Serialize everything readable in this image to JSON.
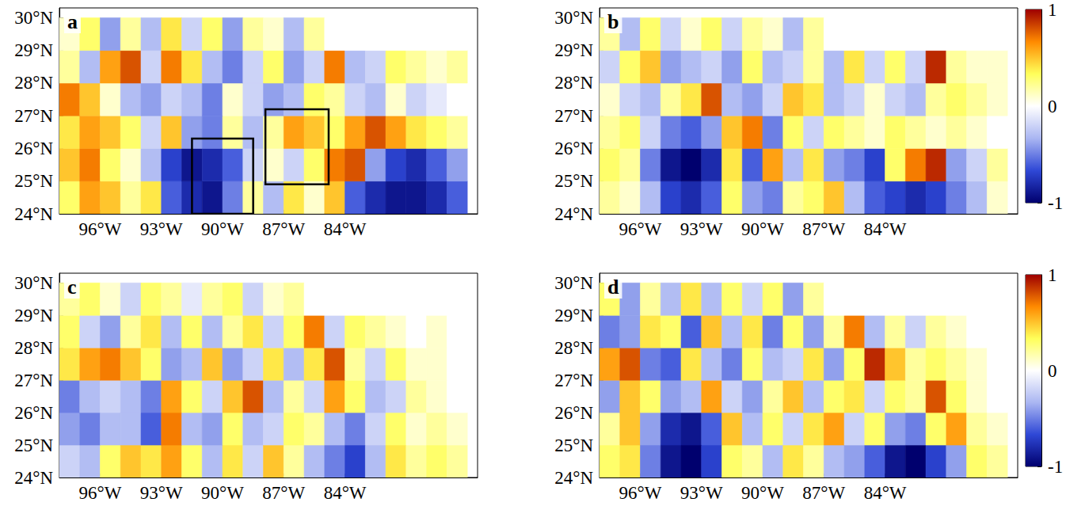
{
  "chart_data": [
    {
      "type": "heatmap",
      "title": "a",
      "grid": false,
      "x": [
        -97.5,
        -96.5,
        -95.5,
        -94.5,
        -93.5,
        -92.5,
        -91.5,
        -90.5,
        -89.5,
        -88.5,
        -87.5,
        -86.5,
        -85.5,
        -84.5,
        -83.5,
        -82.5,
        -81.5,
        -80.5,
        -79.5,
        -78.5
      ],
      "y": [
        24.5,
        25.5,
        26.5,
        27.5,
        28.5,
        29.5
      ],
      "values": [
        [
          0.3,
          0.6,
          0.5,
          0.2,
          0.4,
          -0.6,
          -0.8,
          -0.9,
          -0.5,
          0.2,
          -0.3,
          0.4,
          0.1,
          0.5,
          -0.6,
          -0.8,
          -0.9,
          -0.9,
          -0.8,
          -0.6
        ],
        [
          0.5,
          0.7,
          0.3,
          0.1,
          -0.3,
          -0.7,
          -0.9,
          -0.8,
          -0.6,
          -0.2,
          0.1,
          -0.2,
          0.3,
          0.7,
          0.8,
          -0.4,
          -0.7,
          -0.8,
          -0.6,
          -0.4
        ],
        [
          0.4,
          0.6,
          0.5,
          0.3,
          -0.2,
          0.5,
          -0.4,
          -0.5,
          0.2,
          -0.3,
          0.2,
          0.6,
          0.5,
          0.3,
          0.6,
          0.8,
          0.6,
          0.4,
          0.3,
          0.2
        ],
        [
          0.7,
          0.5,
          0.1,
          -0.3,
          -0.4,
          -0.2,
          -0.3,
          -0.5,
          0.1,
          -0.2,
          -0.4,
          -0.3,
          0.3,
          0.2,
          -0.2,
          -0.3,
          0.1,
          -0.2,
          -0.1,
          0.0
        ],
        [
          0.2,
          -0.3,
          0.6,
          0.8,
          -0.2,
          0.7,
          0.4,
          -0.3,
          -0.5,
          -0.2,
          0.3,
          -0.4,
          -0.2,
          0.7,
          -0.3,
          -0.2,
          0.3,
          0.2,
          0.1,
          0.2
        ],
        [
          0.1,
          0.3,
          -0.4,
          0.2,
          -0.3,
          0.4,
          -0.2,
          0.3,
          -0.4,
          0.2,
          0.1,
          -0.3,
          0.2,
          0.0,
          0.0,
          0.0,
          0.0,
          0.0,
          0.0,
          0.0
        ]
      ],
      "xlim": [
        -98,
        -77.5
      ],
      "xticks": [
        {
          "value": -96,
          "label": "96°W"
        },
        {
          "value": -93,
          "label": "93°W"
        },
        {
          "value": -90,
          "label": "90°W"
        },
        {
          "value": -87,
          "label": "87°W"
        },
        {
          "value": -84,
          "label": "84°W"
        }
      ],
      "ylim": [
        24,
        30.3
      ],
      "yticks": [
        {
          "value": 24,
          "label": "24°N"
        },
        {
          "value": 25,
          "label": "25°N"
        },
        {
          "value": 26,
          "label": "26°N"
        },
        {
          "value": 27,
          "label": "27°N"
        },
        {
          "value": 28,
          "label": "28°N"
        },
        {
          "value": 29,
          "label": "29°N"
        },
        {
          "value": 30,
          "label": "30°N"
        }
      ],
      "boxes": [
        {
          "lon": [
            -91.5,
            -88.5
          ],
          "lat": [
            24,
            26.3
          ]
        },
        {
          "lon": [
            -87.9,
            -84.8
          ],
          "lat": [
            24.9,
            27.2
          ]
        }
      ]
    },
    {
      "type": "heatmap",
      "title": "b",
      "grid": false,
      "x": [
        -97.5,
        -96.5,
        -95.5,
        -94.5,
        -93.5,
        -92.5,
        -91.5,
        -90.5,
        -89.5,
        -88.5,
        -87.5,
        -86.5,
        -85.5,
        -84.5,
        -83.5,
        -82.5,
        -81.5,
        -80.5,
        -79.5,
        -78.5
      ],
      "y": [
        24.5,
        25.5,
        26.5,
        27.5,
        28.5,
        29.5
      ],
      "values": [
        [
          0.2,
          0.1,
          -0.3,
          -0.7,
          -0.8,
          -0.6,
          0.3,
          -0.4,
          -0.5,
          0.2,
          0.3,
          0.5,
          -0.3,
          -0.6,
          -0.7,
          -0.8,
          -0.7,
          -0.5,
          -0.3,
          0.1
        ],
        [
          0.3,
          0.2,
          -0.5,
          -0.9,
          -1.0,
          -0.8,
          0.4,
          -0.6,
          0.6,
          -0.3,
          0.4,
          -0.4,
          -0.5,
          -0.7,
          0.3,
          0.7,
          0.9,
          -0.4,
          -0.2,
          0.2
        ],
        [
          0.2,
          0.3,
          -0.2,
          -0.5,
          -0.6,
          -0.4,
          0.5,
          0.7,
          -0.5,
          0.3,
          -0.2,
          0.3,
          0.2,
          0.1,
          0.3,
          0.2,
          0.1,
          0.2,
          0.1,
          0.0
        ],
        [
          0.1,
          -0.2,
          -0.3,
          0.2,
          0.4,
          0.8,
          -0.3,
          -0.4,
          -0.2,
          0.5,
          0.4,
          -0.3,
          -0.2,
          0.1,
          -0.2,
          -0.3,
          0.2,
          0.3,
          0.2,
          0.1
        ],
        [
          -0.2,
          0.3,
          0.5,
          -0.4,
          -0.3,
          -0.2,
          -0.4,
          0.3,
          -0.3,
          -0.2,
          0.2,
          -0.3,
          0.4,
          -0.2,
          0.3,
          -0.2,
          0.9,
          0.2,
          0.1,
          0.1
        ],
        [
          0.2,
          -0.3,
          0.3,
          -0.2,
          0.1,
          0.3,
          -0.2,
          0.2,
          0.1,
          -0.3,
          0.2,
          0.0,
          0.0,
          0.0,
          0.0,
          0.0,
          0.0,
          0.0,
          0.0,
          0.0
        ]
      ],
      "xlim": [
        -98,
        -77.5
      ],
      "xticks": [
        {
          "value": -96,
          "label": "96°W"
        },
        {
          "value": -93,
          "label": "93°W"
        },
        {
          "value": -90,
          "label": "90°W"
        },
        {
          "value": -87,
          "label": "87°W"
        },
        {
          "value": -84,
          "label": "84°W"
        }
      ],
      "ylim": [
        24,
        30.3
      ],
      "yticks": [
        {
          "value": 24,
          "label": "24°N"
        },
        {
          "value": 25,
          "label": "25°N"
        },
        {
          "value": 26,
          "label": "26°N"
        },
        {
          "value": 27,
          "label": "27°N"
        },
        {
          "value": 28,
          "label": "28°N"
        },
        {
          "value": 29,
          "label": "29°N"
        },
        {
          "value": 30,
          "label": "30°N"
        }
      ],
      "colorbar": {
        "range": [
          -1,
          1
        ],
        "ticks": [
          -1,
          0,
          1
        ]
      }
    },
    {
      "type": "heatmap",
      "title": "c",
      "grid": false,
      "x": [
        -97.5,
        -96.5,
        -95.5,
        -94.5,
        -93.5,
        -92.5,
        -91.5,
        -90.5,
        -89.5,
        -88.5,
        -87.5,
        -86.5,
        -85.5,
        -84.5,
        -83.5,
        -82.5,
        -81.5,
        -80.5,
        -79.5,
        -78.5
      ],
      "y": [
        24.5,
        25.5,
        26.5,
        27.5,
        28.5,
        29.5
      ],
      "values": [
        [
          -0.2,
          -0.3,
          0.3,
          0.5,
          0.4,
          0.6,
          0.3,
          -0.3,
          0.4,
          -0.2,
          0.5,
          0.2,
          -0.3,
          -0.5,
          -0.7,
          -0.3,
          0.4,
          0.2,
          0.3,
          0.2
        ],
        [
          -0.4,
          -0.5,
          -0.3,
          -0.3,
          -0.6,
          0.7,
          -0.3,
          -0.4,
          0.3,
          -0.3,
          -0.2,
          0.3,
          0.2,
          -0.3,
          -0.5,
          -0.2,
          0.3,
          0.1,
          0.2,
          0.1
        ],
        [
          -0.5,
          -0.3,
          -0.2,
          -0.3,
          -0.5,
          0.6,
          0.3,
          -0.2,
          0.5,
          0.8,
          -0.3,
          0.2,
          -0.2,
          0.6,
          0.3,
          -0.3,
          -0.2,
          0.2,
          0.1,
          0.0
        ],
        [
          0.4,
          0.6,
          0.7,
          0.5,
          0.3,
          -0.4,
          -0.3,
          0.5,
          -0.4,
          -0.2,
          0.4,
          -0.3,
          0.4,
          0.8,
          0.2,
          -0.2,
          0.3,
          0.1,
          0.1,
          0.0
        ],
        [
          0.3,
          -0.2,
          -0.4,
          0.2,
          0.4,
          -0.3,
          0.3,
          -0.3,
          0.2,
          0.4,
          -0.2,
          0.3,
          0.7,
          -0.2,
          0.3,
          0.2,
          0.1,
          0.0,
          0.1,
          0.0
        ],
        [
          0.2,
          0.3,
          0.1,
          -0.2,
          0.3,
          0.2,
          -0.1,
          0.2,
          0.3,
          -0.2,
          0.1,
          0.2,
          0.0,
          0.0,
          0.0,
          0.0,
          0.0,
          0.0,
          0.0,
          0.0
        ]
      ],
      "xlim": [
        -98,
        -77.5
      ],
      "xticks": [
        {
          "value": -96,
          "label": "96°W"
        },
        {
          "value": -93,
          "label": "93°W"
        },
        {
          "value": -90,
          "label": "90°W"
        },
        {
          "value": -87,
          "label": "87°W"
        },
        {
          "value": -84,
          "label": "84°W"
        }
      ],
      "ylim": [
        24,
        30.3
      ],
      "yticks": [
        {
          "value": 24,
          "label": "24°N"
        },
        {
          "value": 25,
          "label": "25°N"
        },
        {
          "value": 26,
          "label": "26°N"
        },
        {
          "value": 27,
          "label": "27°N"
        },
        {
          "value": 28,
          "label": "28°N"
        },
        {
          "value": 29,
          "label": "29°N"
        },
        {
          "value": 30,
          "label": "30°N"
        }
      ]
    },
    {
      "type": "heatmap",
      "title": "d",
      "grid": false,
      "x": [
        -97.5,
        -96.5,
        -95.5,
        -94.5,
        -93.5,
        -92.5,
        -91.5,
        -90.5,
        -89.5,
        -88.5,
        -87.5,
        -86.5,
        -85.5,
        -84.5,
        -83.5,
        -82.5,
        -81.5,
        -80.5,
        -79.5,
        -78.5
      ],
      "y": [
        24.5,
        25.5,
        26.5,
        27.5,
        28.5,
        29.5
      ],
      "values": [
        [
          0.3,
          0.4,
          -0.5,
          -0.9,
          -1.0,
          -0.7,
          0.3,
          0.2,
          -0.3,
          0.4,
          0.2,
          -0.3,
          -0.4,
          -0.6,
          -0.9,
          -1.0,
          -0.7,
          -0.4,
          0.3,
          0.2
        ],
        [
          0.2,
          0.5,
          -0.4,
          -0.8,
          -0.9,
          -0.6,
          0.5,
          -0.3,
          0.3,
          -0.2,
          0.4,
          0.6,
          -0.2,
          0.3,
          -0.4,
          -0.5,
          0.3,
          0.6,
          0.2,
          0.1
        ],
        [
          -0.4,
          0.5,
          0.3,
          -0.4,
          -0.3,
          0.6,
          -0.2,
          -0.4,
          0.2,
          0.5,
          -0.3,
          0.3,
          0.4,
          -0.2,
          0.3,
          0.2,
          0.8,
          0.3,
          0.1,
          0.0
        ],
        [
          0.6,
          0.8,
          -0.5,
          -0.6,
          0.4,
          -0.3,
          -0.5,
          0.3,
          -0.3,
          -0.2,
          0.4,
          -0.4,
          0.3,
          0.9,
          0.5,
          0.2,
          0.3,
          0.2,
          0.1,
          0.0
        ],
        [
          -0.5,
          -0.4,
          0.4,
          0.3,
          -0.6,
          0.5,
          -0.3,
          0.4,
          -0.5,
          0.3,
          -0.4,
          0.2,
          0.7,
          -0.3,
          0.2,
          -0.2,
          0.2,
          0.1,
          0.0,
          0.0
        ],
        [
          0.3,
          -0.4,
          0.2,
          -0.3,
          0.4,
          -0.3,
          0.3,
          -0.2,
          0.3,
          -0.4,
          0.2,
          0.0,
          0.0,
          0.0,
          0.0,
          0.0,
          0.0,
          0.0,
          0.0,
          0.0
        ]
      ],
      "xlim": [
        -98,
        -77.5
      ],
      "xticks": [
        {
          "value": -96,
          "label": "96°W"
        },
        {
          "value": -93,
          "label": "93°W"
        },
        {
          "value": -90,
          "label": "90°W"
        },
        {
          "value": -87,
          "label": "87°W"
        },
        {
          "value": -84,
          "label": "84°W"
        }
      ],
      "ylim": [
        24,
        30.3
      ],
      "yticks": [
        {
          "value": 24,
          "label": "24°N"
        },
        {
          "value": 25,
          "label": "25°N"
        },
        {
          "value": 26,
          "label": "26°N"
        },
        {
          "value": 27,
          "label": "27°N"
        },
        {
          "value": 28,
          "label": "28°N"
        },
        {
          "value": 29,
          "label": "29°N"
        },
        {
          "value": 30,
          "label": "30°N"
        }
      ],
      "colorbar": {
        "range": [
          -1,
          1
        ],
        "ticks": [
          -1,
          0,
          1
        ]
      }
    }
  ]
}
